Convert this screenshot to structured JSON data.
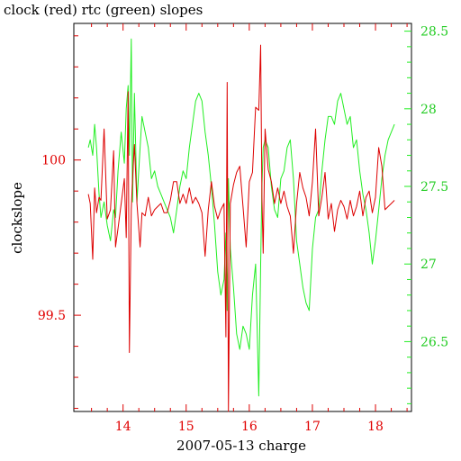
{
  "chart_data": {
    "type": "line",
    "title": "clock (red) rtc (green) slopes",
    "xlabel": "2007-05-13 charge",
    "ylabel": "clockslope",
    "xlim": [
      13.22,
      18.57
    ],
    "ylim_left": [
      99.19,
      100.44
    ],
    "ylim_right": [
      26.05,
      28.55
    ],
    "x_ticks": [
      "14",
      "15",
      "16",
      "17",
      "18"
    ],
    "left_ticks": [
      "99.5",
      "100"
    ],
    "right_ticks": [
      "26.5",
      "27",
      "27.5",
      "28",
      "28.5"
    ],
    "colors": {
      "clock": "#dd0000",
      "rtc": "#22ee22",
      "axis": "#000000"
    },
    "series": [
      {
        "axis": "left",
        "color": "#dd0000",
        "x": [
          13.45,
          13.48,
          13.52,
          13.55,
          13.58,
          13.62,
          13.65,
          13.7,
          13.75,
          13.8,
          13.85,
          13.88,
          13.92,
          13.97,
          14.02,
          14.05,
          14.08,
          14.1,
          14.13,
          14.15,
          14.18,
          14.22,
          14.27,
          14.3,
          14.35,
          14.4,
          14.45,
          14.5,
          14.55,
          14.6,
          14.65,
          14.7,
          14.75,
          14.8,
          14.85,
          14.9,
          14.95,
          15.0,
          15.05,
          15.1,
          15.15,
          15.2,
          15.25,
          15.3,
          15.35,
          15.4,
          15.45,
          15.5,
          15.55,
          15.6,
          15.63,
          15.65,
          15.67,
          15.7,
          15.75,
          15.8,
          15.85,
          15.9,
          15.95,
          16.0,
          16.05,
          16.1,
          16.15,
          16.18,
          16.2,
          16.22,
          16.25,
          16.3,
          16.35,
          16.4,
          16.45,
          16.5,
          16.55,
          16.6,
          16.65,
          16.7,
          16.75,
          16.8,
          16.85,
          16.9,
          16.95,
          17.0,
          17.05,
          17.1,
          17.15,
          17.2,
          17.25,
          17.3,
          17.35,
          17.4,
          17.45,
          17.5,
          17.55,
          17.6,
          17.65,
          17.7,
          17.75,
          17.8,
          17.85,
          17.9,
          17.95,
          18.0,
          18.05,
          18.1,
          18.15,
          18.2,
          18.25,
          18.3
        ],
        "y": [
          99.89,
          99.86,
          99.68,
          99.91,
          99.83,
          99.88,
          99.87,
          100.1,
          99.81,
          99.84,
          100.03,
          99.72,
          99.78,
          99.86,
          99.94,
          99.75,
          100.22,
          99.38,
          99.84,
          99.94,
          100.05,
          99.86,
          99.72,
          99.83,
          99.82,
          99.88,
          99.82,
          99.84,
          99.85,
          99.86,
          99.83,
          99.83,
          99.87,
          99.93,
          99.93,
          99.86,
          99.89,
          99.86,
          99.91,
          99.86,
          99.88,
          99.86,
          99.83,
          99.69,
          99.84,
          99.93,
          99.85,
          99.81,
          99.84,
          99.86,
          99.43,
          100.25,
          99.19,
          99.86,
          99.92,
          99.96,
          99.98,
          99.85,
          99.72,
          99.93,
          99.96,
          100.17,
          100.16,
          100.37,
          99.88,
          99.7,
          100.1,
          99.97,
          99.93,
          99.86,
          99.91,
          99.86,
          99.9,
          99.85,
          99.82,
          99.7,
          99.86,
          99.96,
          99.91,
          99.88,
          99.82,
          99.93,
          100.1,
          99.82,
          99.88,
          99.96,
          99.81,
          99.86,
          99.77,
          99.84,
          99.87,
          99.85,
          99.81,
          99.87,
          99.82,
          99.85,
          99.9,
          99.82,
          99.88,
          99.9,
          99.83,
          99.88,
          100.04,
          99.98,
          99.84,
          99.85,
          99.86,
          99.87
        ]
      },
      {
        "axis": "right",
        "color": "#22ee22",
        "x": [
          13.45,
          13.48,
          13.52,
          13.55,
          13.58,
          13.62,
          13.65,
          13.7,
          13.75,
          13.8,
          13.85,
          13.88,
          13.92,
          13.97,
          14.02,
          14.05,
          14.08,
          14.1,
          14.13,
          14.15,
          14.18,
          14.22,
          14.27,
          14.3,
          14.35,
          14.4,
          14.45,
          14.5,
          14.55,
          14.6,
          14.65,
          14.7,
          14.75,
          14.8,
          14.85,
          14.9,
          14.95,
          15.0,
          15.05,
          15.1,
          15.15,
          15.2,
          15.25,
          15.3,
          15.35,
          15.4,
          15.45,
          15.5,
          15.55,
          15.6,
          15.63,
          15.65,
          15.67,
          15.7,
          15.75,
          15.8,
          15.85,
          15.9,
          15.95,
          16.0,
          16.05,
          16.1,
          16.15,
          16.18,
          16.2,
          16.22,
          16.25,
          16.3,
          16.35,
          16.4,
          16.45,
          16.5,
          16.55,
          16.6,
          16.65,
          16.7,
          16.75,
          16.8,
          16.85,
          16.9,
          16.95,
          17.0,
          17.05,
          17.1,
          17.15,
          17.2,
          17.25,
          17.3,
          17.35,
          17.4,
          17.45,
          17.5,
          17.55,
          17.6,
          17.65,
          17.7,
          17.75,
          17.8,
          17.85,
          17.9,
          17.95,
          18.0,
          18.05,
          18.1,
          18.15,
          18.2,
          18.25,
          18.3
        ],
        "y": [
          27.75,
          27.8,
          27.7,
          27.9,
          27.75,
          27.45,
          27.3,
          27.4,
          27.25,
          27.15,
          27.35,
          27.3,
          27.6,
          27.85,
          27.65,
          28.0,
          28.15,
          27.7,
          28.45,
          27.4,
          28.1,
          27.4,
          27.75,
          27.95,
          27.85,
          27.75,
          27.55,
          27.6,
          27.5,
          27.45,
          27.4,
          27.35,
          27.3,
          27.2,
          27.35,
          27.5,
          27.6,
          27.55,
          27.75,
          27.9,
          28.05,
          28.1,
          28.05,
          27.85,
          27.7,
          27.5,
          27.25,
          26.95,
          26.8,
          26.9,
          27.2,
          26.7,
          27.55,
          27.1,
          26.85,
          26.55,
          26.45,
          26.6,
          26.55,
          26.45,
          26.8,
          27.0,
          26.15,
          27.0,
          27.5,
          27.75,
          27.8,
          27.75,
          27.5,
          27.35,
          27.3,
          27.55,
          27.6,
          27.75,
          27.8,
          27.55,
          27.15,
          27.0,
          26.85,
          26.75,
          26.7,
          27.1,
          27.3,
          27.35,
          27.6,
          27.8,
          27.95,
          27.95,
          27.9,
          28.05,
          28.1,
          28.0,
          27.9,
          27.95,
          27.75,
          27.8,
          27.6,
          27.45,
          27.35,
          27.2,
          27.0,
          27.15,
          27.35,
          27.55,
          27.7,
          27.8,
          27.85,
          27.9
        ]
      }
    ]
  }
}
